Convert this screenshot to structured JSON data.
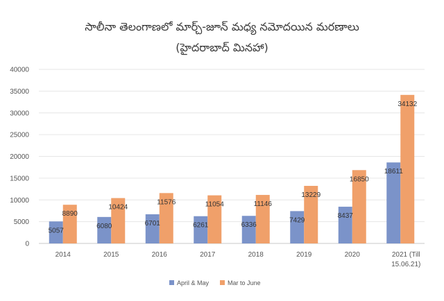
{
  "chart_data": {
    "type": "bar",
    "title": "సాలీనా తెలంగాణలో మార్చ్-జూన్ మధ్య నమోదయిన మరణాలు",
    "subtitle": "(హైదరాబాద్ మినహా)",
    "categories": [
      "2014",
      "2015",
      "2016",
      "2017",
      "2018",
      "2019",
      "2020",
      "2021 (Till 15.06.21)"
    ],
    "series": [
      {
        "name": "April & May",
        "color": "#7b93c9",
        "values": [
          5057,
          6080,
          6701,
          6261,
          6336,
          7429,
          8437,
          18611
        ]
      },
      {
        "name": "Mar to June",
        "color": "#f0a06a",
        "values": [
          8890,
          10424,
          11576,
          11054,
          11146,
          13229,
          16850,
          34132
        ]
      }
    ],
    "ylim": [
      0,
      40000
    ],
    "yticks": [
      "0",
      "5000",
      "10000",
      "15000",
      "20000",
      "25000",
      "30000",
      "35000",
      "40000"
    ],
    "grid": true,
    "legend_position": "bottom"
  }
}
